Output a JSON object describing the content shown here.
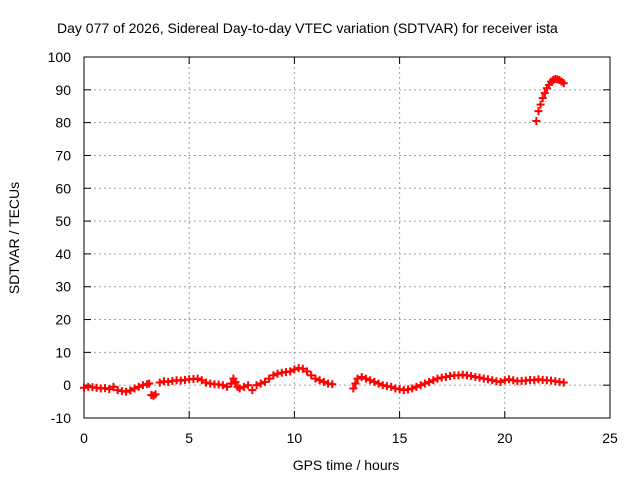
{
  "chart_data": {
    "type": "scatter",
    "title": "Day 077 of 2026, Sidereal Day-to-day VTEC variation (SDTVAR) for receiver ista",
    "xlabel": "GPS time / hours",
    "ylabel": "SDTVAR / TECUs",
    "xlim": [
      0,
      25
    ],
    "ylim": [
      -10,
      100
    ],
    "xticks": [
      0,
      5,
      10,
      15,
      20,
      25
    ],
    "yticks": [
      -10,
      0,
      10,
      20,
      30,
      40,
      50,
      60,
      70,
      80,
      90,
      100
    ],
    "grid": true,
    "legend": "none",
    "marker": "plus",
    "color": "#ff0000",
    "series": [
      {
        "x": [
          0.0,
          0.2,
          0.4,
          0.6,
          0.8,
          1.0,
          1.2,
          1.4,
          1.6,
          1.8,
          2.0,
          2.2,
          2.4,
          2.6,
          2.8,
          3.0,
          3.1,
          3.2,
          3.3,
          3.4,
          3.6,
          3.8,
          4.0,
          4.2,
          4.4,
          4.6,
          4.8,
          5.0,
          5.2,
          5.4,
          5.6,
          5.8,
          6.0,
          6.2,
          6.4,
          6.6,
          6.8,
          7.0,
          7.1,
          7.2,
          7.3,
          7.4,
          7.6,
          7.8,
          8.0,
          8.2,
          8.4,
          8.6,
          8.8,
          9.0,
          9.2,
          9.4,
          9.6,
          9.8,
          10.0,
          10.2,
          10.4,
          10.6,
          10.8,
          11.0,
          11.2,
          11.4,
          11.6,
          11.8,
          12.8,
          12.9,
          13.0,
          13.2,
          13.4,
          13.6,
          13.8,
          14.0,
          14.2,
          14.4,
          14.6,
          14.8,
          15.0,
          15.2,
          15.4,
          15.6,
          15.8,
          16.0,
          16.2,
          16.4,
          16.6,
          16.8,
          17.0,
          17.2,
          17.4,
          17.6,
          17.8,
          18.0,
          18.2,
          18.4,
          18.6,
          18.8,
          19.0,
          19.2,
          19.4,
          19.6,
          19.8,
          20.0,
          20.2,
          20.4,
          20.6,
          20.8,
          21.0,
          21.2,
          21.4,
          21.6,
          21.8,
          22.0,
          22.2,
          22.4,
          22.6,
          22.8,
          21.5,
          21.6,
          21.7,
          21.8,
          21.9,
          22.0,
          22.1,
          22.2,
          22.3,
          22.4,
          22.5,
          22.6,
          22.7,
          22.8
        ],
        "y": [
          -0.8,
          -0.5,
          -0.6,
          -0.8,
          -1.0,
          -0.9,
          -1.2,
          -0.5,
          -1.5,
          -1.8,
          -2.0,
          -1.6,
          -1.0,
          -0.5,
          0.0,
          0.3,
          0.5,
          -3.0,
          -3.2,
          -2.8,
          0.8,
          1.2,
          1.0,
          1.3,
          1.5,
          1.4,
          1.6,
          1.8,
          1.9,
          2.0,
          1.5,
          0.8,
          0.5,
          0.3,
          0.2,
          0.0,
          -0.5,
          0.5,
          2.0,
          1.0,
          -0.5,
          -1.0,
          -0.5,
          0.0,
          -1.5,
          0.0,
          0.5,
          1.0,
          2.0,
          3.0,
          3.5,
          3.8,
          4.0,
          4.2,
          4.8,
          5.2,
          5.0,
          4.2,
          3.0,
          2.0,
          1.5,
          1.0,
          0.5,
          0.3,
          -1.0,
          0.5,
          2.0,
          2.5,
          2.0,
          1.5,
          1.0,
          0.5,
          0.0,
          -0.3,
          -0.5,
          -1.0,
          -1.2,
          -1.5,
          -1.3,
          -1.0,
          -0.5,
          0.0,
          0.5,
          1.0,
          1.5,
          2.0,
          2.3,
          2.5,
          2.8,
          3.0,
          3.0,
          3.2,
          3.0,
          2.8,
          2.5,
          2.3,
          2.0,
          1.8,
          1.5,
          1.2,
          1.0,
          1.5,
          1.8,
          1.5,
          1.2,
          1.3,
          1.4,
          1.6,
          1.5,
          1.8,
          1.6,
          1.5,
          1.4,
          1.2,
          1.0,
          0.8,
          80.5,
          83.5,
          85.5,
          87.5,
          89.0,
          90.5,
          91.5,
          92.5,
          93.0,
          93.3,
          93.2,
          93.0,
          92.5,
          92.0
        ]
      }
    ]
  }
}
